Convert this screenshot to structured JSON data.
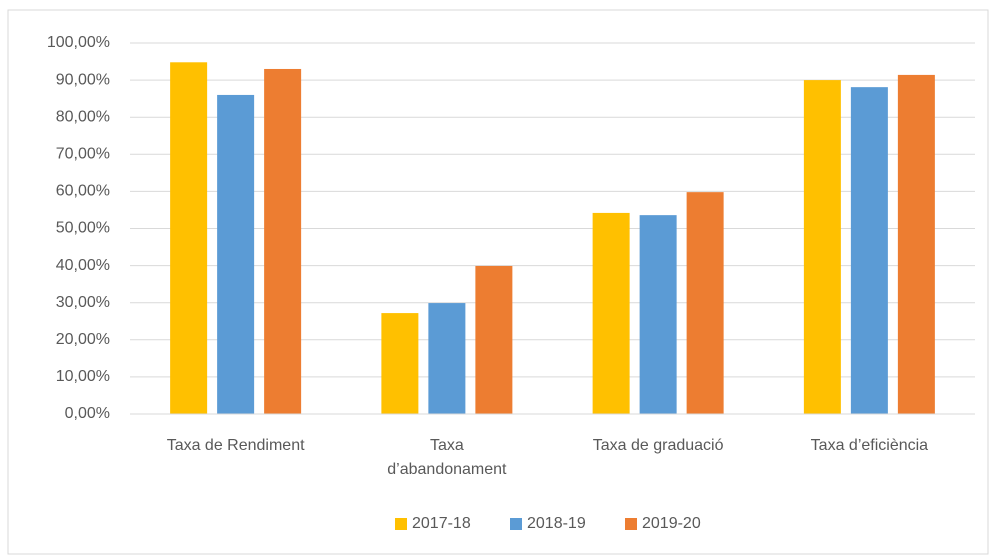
{
  "chart_data": {
    "type": "bar",
    "categories": [
      "Taxa de Rendiment",
      "Taxa d’abandonament",
      "Taxa de graduació",
      "Taxa d’eficiència"
    ],
    "series": [
      {
        "name": "2017-18",
        "color": "#ffc000",
        "values": [
          94.8,
          27.2,
          54.2,
          90.0
        ]
      },
      {
        "name": "2018-19",
        "color": "#5b9bd5",
        "values": [
          86.0,
          29.9,
          53.6,
          88.1
        ]
      },
      {
        "name": "2019-20",
        "color": "#ed7d31",
        "values": [
          93.0,
          39.9,
          59.8,
          91.4
        ]
      }
    ],
    "ylim": [
      0,
      100
    ],
    "yticks": [
      {
        "value": 0,
        "label": "0,00%"
      },
      {
        "value": 10,
        "label": "10,00%"
      },
      {
        "value": 20,
        "label": "20,00%"
      },
      {
        "value": 30,
        "label": "30,00%"
      },
      {
        "value": 40,
        "label": "40,00%"
      },
      {
        "value": 50,
        "label": "50,00%"
      },
      {
        "value": 60,
        "label": "60,00%"
      },
      {
        "value": 70,
        "label": "70,00%"
      },
      {
        "value": 80,
        "label": "80,00%"
      },
      {
        "value": 90,
        "label": "90,00%"
      },
      {
        "value": 100,
        "label": "100,00%"
      }
    ],
    "grid": true,
    "legend": "bottom"
  }
}
